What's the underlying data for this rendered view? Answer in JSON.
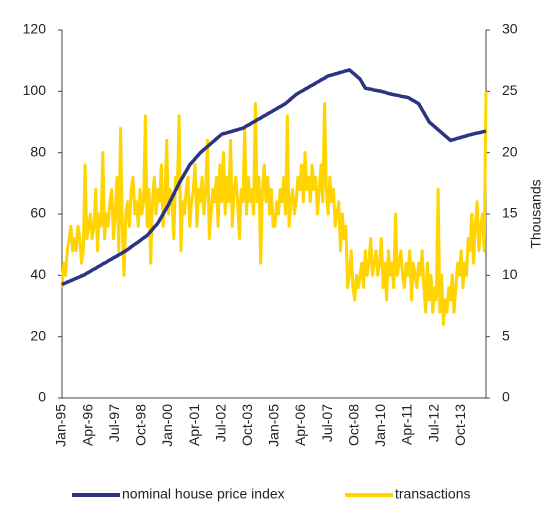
{
  "chart_data": {
    "type": "line",
    "y2label": "Thousands",
    "categories": [
      "Jan-95",
      null,
      null,
      null,
      null,
      null,
      null,
      null,
      null,
      null,
      null,
      null,
      null,
      null,
      null,
      "Apr-96",
      null,
      null,
      null,
      null,
      null,
      null,
      null,
      null,
      null,
      null,
      null,
      null,
      null,
      null,
      "Jul-97",
      null,
      null,
      null,
      null,
      null,
      null,
      null,
      null,
      null,
      null,
      null,
      null,
      null,
      null,
      "Oct-98",
      null,
      null,
      null,
      null,
      null,
      null,
      null,
      null,
      null,
      null,
      null,
      null,
      null,
      null,
      "Jan-00",
      null,
      null,
      null,
      null,
      null,
      null,
      null,
      null,
      null,
      null,
      null,
      null,
      null,
      null,
      "Apr-01",
      null,
      null,
      null,
      null,
      null,
      null,
      null,
      null,
      null,
      null,
      null,
      null,
      null,
      null,
      "Jul-02",
      null,
      null,
      null,
      null,
      null,
      null,
      null,
      null,
      null,
      null,
      null,
      null,
      null,
      null,
      "Oct-03",
      null,
      null,
      null,
      null,
      null,
      null,
      null,
      null,
      null,
      null,
      null,
      null,
      null,
      null,
      "Jan-05",
      null,
      null,
      null,
      null,
      null,
      null,
      null,
      null,
      null,
      null,
      null,
      null,
      null,
      null,
      "Apr-06",
      null,
      null,
      null,
      null,
      null,
      null,
      null,
      null,
      null,
      null,
      null,
      null,
      null,
      null,
      "Jul-07",
      null,
      null,
      null,
      null,
      null,
      null,
      null,
      null,
      null,
      null,
      null,
      null,
      null,
      null,
      "Oct-08",
      null,
      null,
      null,
      null,
      null,
      null,
      null,
      null,
      null,
      null,
      null,
      null,
      null,
      null,
      "Jan-10",
      null,
      null,
      null,
      null,
      null,
      null,
      null,
      null,
      null,
      null,
      null,
      null,
      null,
      null,
      "Apr-11",
      null,
      null,
      null,
      null,
      null,
      null,
      null,
      null,
      null,
      null,
      null,
      null,
      null,
      null,
      "Jul-12",
      null,
      null,
      null,
      null,
      null,
      null,
      null,
      null,
      null,
      null,
      null,
      null,
      null,
      null,
      "Oct-13",
      null,
      null,
      null,
      null,
      null,
      null,
      null,
      null,
      null,
      null,
      null,
      null,
      null,
      null
    ],
    "series": [
      {
        "name": "nominal house price index",
        "color": "#2e3580",
        "values": [
          37,
          37.3,
          37.5,
          37.8,
          38,
          38.3,
          38.5,
          38.8,
          39,
          39.3,
          39.5,
          39.8,
          40,
          40.3,
          40.7,
          41,
          41.3,
          41.7,
          42,
          42.3,
          42.7,
          43,
          43.3,
          43.7,
          44,
          44.3,
          44.7,
          45,
          45.3,
          45.7,
          46,
          46.3,
          46.7,
          47,
          47.3,
          47.7,
          48,
          48.4,
          48.8,
          49.3,
          49.7,
          50.1,
          50.5,
          50.9,
          51.3,
          51.8,
          52.2,
          52.6,
          53,
          53.7,
          54.3,
          55,
          55.7,
          56.3,
          57,
          58,
          59,
          60,
          61,
          62,
          63,
          64.2,
          65.3,
          66.5,
          67.7,
          68.8,
          70,
          71,
          72,
          73,
          74,
          75,
          76,
          76.7,
          77.3,
          78,
          78.7,
          79.3,
          80,
          80.5,
          81,
          81.5,
          82,
          82.5,
          83,
          83.5,
          84,
          84.5,
          85,
          85.5,
          86,
          86.2,
          86.3,
          86.5,
          86.7,
          86.8,
          87,
          87.2,
          87.3,
          87.5,
          87.7,
          87.8,
          88,
          88.3,
          88.7,
          89,
          89.3,
          89.7,
          90,
          90.3,
          90.7,
          91,
          91.3,
          91.7,
          92,
          92.3,
          92.7,
          93,
          93.3,
          93.7,
          94,
          94.3,
          94.7,
          95,
          95.3,
          95.7,
          96,
          96.5,
          97,
          97.5,
          98,
          98.5,
          99,
          99.3,
          99.7,
          100,
          100.3,
          100.7,
          101,
          101.3,
          101.7,
          102,
          102.3,
          102.7,
          103,
          103.3,
          103.7,
          104,
          104.3,
          104.7,
          105,
          105.2,
          105.3,
          105.5,
          105.7,
          105.8,
          106,
          106.2,
          106.3,
          106.5,
          106.7,
          106.8,
          107,
          106.5,
          106,
          105.5,
          105,
          104.5,
          104,
          103,
          102,
          101,
          100.9,
          100.8,
          100.7,
          100.6,
          100.4,
          100.3,
          100.2,
          100.1,
          100,
          99.8,
          99.7,
          99.5,
          99.3,
          99.2,
          99,
          98.9,
          98.8,
          98.7,
          98.6,
          98.4,
          98.3,
          98.2,
          98.1,
          98,
          97.7,
          97.3,
          97,
          96.7,
          96.3,
          96,
          95,
          94,
          93,
          92,
          91,
          90,
          89.5,
          89,
          88.5,
          88,
          87.5,
          87,
          86.5,
          86,
          85.5,
          85,
          84.5,
          84,
          84.2,
          84.3,
          84.5,
          84.7,
          84.8,
          85,
          85.2,
          85.3,
          85.5,
          85.7,
          85.8,
          86,
          86.1,
          86.3,
          86.4,
          86.5,
          86.6,
          86.8,
          86.9,
          87
        ]
      },
      {
        "name": "transactions",
        "color": "#ffd400",
        "axis": "y2",
        "values": [
          9,
          11,
          10,
          12,
          13,
          14,
          12,
          13,
          12,
          14,
          13,
          11,
          12,
          19,
          13,
          14,
          15,
          13,
          14,
          17,
          12,
          15,
          14,
          20,
          13,
          15,
          14,
          16,
          17,
          13,
          15,
          18,
          12,
          22,
          14,
          10,
          15,
          16,
          14,
          17,
          18,
          15,
          16,
          14,
          17,
          15,
          16,
          23,
          14,
          17,
          11,
          16,
          18,
          15,
          17,
          16,
          19,
          14,
          16,
          21,
          15,
          17,
          16,
          13,
          18,
          17,
          23,
          12,
          16,
          15,
          17,
          18,
          14,
          16,
          17,
          19,
          14,
          17,
          16,
          18,
          15,
          17,
          21,
          13,
          15,
          17,
          16,
          18,
          14,
          19,
          16,
          20,
          15,
          18,
          16,
          21,
          14,
          17,
          18,
          16,
          13,
          17,
          16,
          22,
          15,
          18,
          16,
          17,
          15,
          24,
          16,
          18,
          11,
          17,
          19,
          16,
          18,
          15,
          17,
          14,
          14,
          16,
          15,
          17,
          16,
          18,
          15,
          23,
          14,
          16,
          17,
          15,
          16,
          18,
          17,
          19,
          16,
          20,
          17,
          18,
          16,
          19,
          17,
          18,
          15,
          17,
          19,
          16,
          24,
          17,
          15,
          18,
          16,
          17,
          14,
          15,
          16,
          12,
          15,
          13,
          14,
          9,
          10,
          12,
          9,
          8,
          10,
          9,
          10,
          11,
          9,
          12,
          10,
          11,
          13,
          10,
          11,
          12,
          10,
          11,
          13,
          9,
          11,
          8,
          12,
          10,
          11,
          9,
          15,
          10,
          11,
          12,
          10,
          9,
          11,
          10,
          12,
          8,
          11,
          10,
          9,
          11,
          10,
          12,
          9,
          7,
          11,
          8,
          10,
          7,
          9,
          8,
          17,
          7,
          10,
          6,
          8,
          7,
          9,
          8,
          10,
          7,
          9,
          11,
          10,
          12,
          9,
          11,
          10,
          13,
          12,
          15,
          11,
          14,
          16,
          12,
          14,
          15,
          12,
          25
        ]
      }
    ],
    "ylim": [
      0,
      120
    ],
    "yticks": [
      0,
      20,
      40,
      60,
      80,
      100,
      120
    ],
    "y2lim": [
      0,
      30
    ],
    "y2ticks": [
      0,
      5,
      10,
      15,
      20,
      25,
      30
    ],
    "grid": false,
    "legend": "bottom"
  }
}
